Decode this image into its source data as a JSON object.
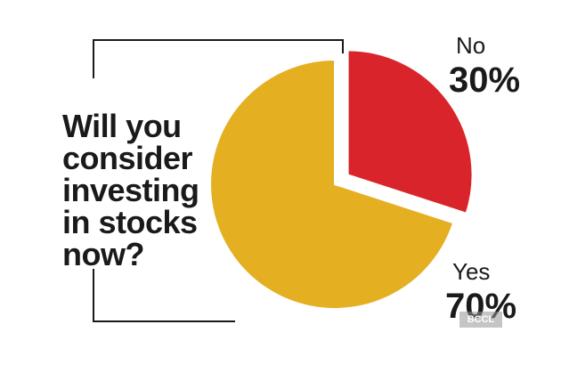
{
  "question_lines": [
    "Will you",
    "consider",
    "investing",
    "in stocks",
    "now?"
  ],
  "chart_data": {
    "type": "pie",
    "title": "",
    "labels": [
      "No",
      "Yes"
    ],
    "values": [
      30,
      70
    ],
    "value_labels": [
      "30%",
      "70%"
    ],
    "colors": [
      "#d9242b",
      "#e5af22"
    ],
    "exploded": "No"
  },
  "watermark": "BCCL"
}
